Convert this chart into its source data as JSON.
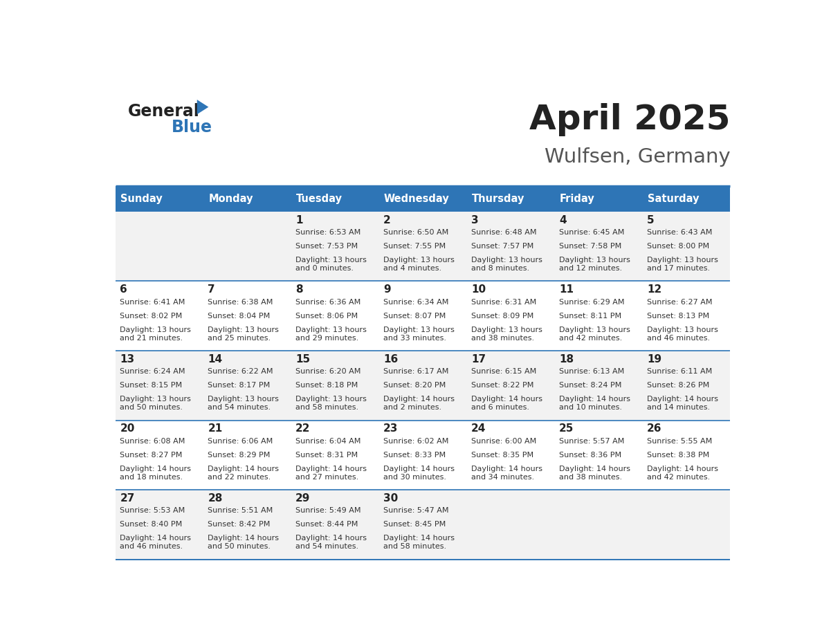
{
  "title": "April 2025",
  "subtitle": "Wulfsen, Germany",
  "header_bg": "#2E75B6",
  "header_text_color": "#FFFFFF",
  "cell_bg_odd": "#F2F2F2",
  "cell_bg_even": "#FFFFFF",
  "border_color": "#2E75B6",
  "day_names": [
    "Sunday",
    "Monday",
    "Tuesday",
    "Wednesday",
    "Thursday",
    "Friday",
    "Saturday"
  ],
  "weeks": [
    [
      {
        "day": "",
        "sunrise": "",
        "sunset": "",
        "daylight": ""
      },
      {
        "day": "",
        "sunrise": "",
        "sunset": "",
        "daylight": ""
      },
      {
        "day": "1",
        "sunrise": "Sunrise: 6:53 AM",
        "sunset": "Sunset: 7:53 PM",
        "daylight": "Daylight: 13 hours\nand 0 minutes."
      },
      {
        "day": "2",
        "sunrise": "Sunrise: 6:50 AM",
        "sunset": "Sunset: 7:55 PM",
        "daylight": "Daylight: 13 hours\nand 4 minutes."
      },
      {
        "day": "3",
        "sunrise": "Sunrise: 6:48 AM",
        "sunset": "Sunset: 7:57 PM",
        "daylight": "Daylight: 13 hours\nand 8 minutes."
      },
      {
        "day": "4",
        "sunrise": "Sunrise: 6:45 AM",
        "sunset": "Sunset: 7:58 PM",
        "daylight": "Daylight: 13 hours\nand 12 minutes."
      },
      {
        "day": "5",
        "sunrise": "Sunrise: 6:43 AM",
        "sunset": "Sunset: 8:00 PM",
        "daylight": "Daylight: 13 hours\nand 17 minutes."
      }
    ],
    [
      {
        "day": "6",
        "sunrise": "Sunrise: 6:41 AM",
        "sunset": "Sunset: 8:02 PM",
        "daylight": "Daylight: 13 hours\nand 21 minutes."
      },
      {
        "day": "7",
        "sunrise": "Sunrise: 6:38 AM",
        "sunset": "Sunset: 8:04 PM",
        "daylight": "Daylight: 13 hours\nand 25 minutes."
      },
      {
        "day": "8",
        "sunrise": "Sunrise: 6:36 AM",
        "sunset": "Sunset: 8:06 PM",
        "daylight": "Daylight: 13 hours\nand 29 minutes."
      },
      {
        "day": "9",
        "sunrise": "Sunrise: 6:34 AM",
        "sunset": "Sunset: 8:07 PM",
        "daylight": "Daylight: 13 hours\nand 33 minutes."
      },
      {
        "day": "10",
        "sunrise": "Sunrise: 6:31 AM",
        "sunset": "Sunset: 8:09 PM",
        "daylight": "Daylight: 13 hours\nand 38 minutes."
      },
      {
        "day": "11",
        "sunrise": "Sunrise: 6:29 AM",
        "sunset": "Sunset: 8:11 PM",
        "daylight": "Daylight: 13 hours\nand 42 minutes."
      },
      {
        "day": "12",
        "sunrise": "Sunrise: 6:27 AM",
        "sunset": "Sunset: 8:13 PM",
        "daylight": "Daylight: 13 hours\nand 46 minutes."
      }
    ],
    [
      {
        "day": "13",
        "sunrise": "Sunrise: 6:24 AM",
        "sunset": "Sunset: 8:15 PM",
        "daylight": "Daylight: 13 hours\nand 50 minutes."
      },
      {
        "day": "14",
        "sunrise": "Sunrise: 6:22 AM",
        "sunset": "Sunset: 8:17 PM",
        "daylight": "Daylight: 13 hours\nand 54 minutes."
      },
      {
        "day": "15",
        "sunrise": "Sunrise: 6:20 AM",
        "sunset": "Sunset: 8:18 PM",
        "daylight": "Daylight: 13 hours\nand 58 minutes."
      },
      {
        "day": "16",
        "sunrise": "Sunrise: 6:17 AM",
        "sunset": "Sunset: 8:20 PM",
        "daylight": "Daylight: 14 hours\nand 2 minutes."
      },
      {
        "day": "17",
        "sunrise": "Sunrise: 6:15 AM",
        "sunset": "Sunset: 8:22 PM",
        "daylight": "Daylight: 14 hours\nand 6 minutes."
      },
      {
        "day": "18",
        "sunrise": "Sunrise: 6:13 AM",
        "sunset": "Sunset: 8:24 PM",
        "daylight": "Daylight: 14 hours\nand 10 minutes."
      },
      {
        "day": "19",
        "sunrise": "Sunrise: 6:11 AM",
        "sunset": "Sunset: 8:26 PM",
        "daylight": "Daylight: 14 hours\nand 14 minutes."
      }
    ],
    [
      {
        "day": "20",
        "sunrise": "Sunrise: 6:08 AM",
        "sunset": "Sunset: 8:27 PM",
        "daylight": "Daylight: 14 hours\nand 18 minutes."
      },
      {
        "day": "21",
        "sunrise": "Sunrise: 6:06 AM",
        "sunset": "Sunset: 8:29 PM",
        "daylight": "Daylight: 14 hours\nand 22 minutes."
      },
      {
        "day": "22",
        "sunrise": "Sunrise: 6:04 AM",
        "sunset": "Sunset: 8:31 PM",
        "daylight": "Daylight: 14 hours\nand 27 minutes."
      },
      {
        "day": "23",
        "sunrise": "Sunrise: 6:02 AM",
        "sunset": "Sunset: 8:33 PM",
        "daylight": "Daylight: 14 hours\nand 30 minutes."
      },
      {
        "day": "24",
        "sunrise": "Sunrise: 6:00 AM",
        "sunset": "Sunset: 8:35 PM",
        "daylight": "Daylight: 14 hours\nand 34 minutes."
      },
      {
        "day": "25",
        "sunrise": "Sunrise: 5:57 AM",
        "sunset": "Sunset: 8:36 PM",
        "daylight": "Daylight: 14 hours\nand 38 minutes."
      },
      {
        "day": "26",
        "sunrise": "Sunrise: 5:55 AM",
        "sunset": "Sunset: 8:38 PM",
        "daylight": "Daylight: 14 hours\nand 42 minutes."
      }
    ],
    [
      {
        "day": "27",
        "sunrise": "Sunrise: 5:53 AM",
        "sunset": "Sunset: 8:40 PM",
        "daylight": "Daylight: 14 hours\nand 46 minutes."
      },
      {
        "day": "28",
        "sunrise": "Sunrise: 5:51 AM",
        "sunset": "Sunset: 8:42 PM",
        "daylight": "Daylight: 14 hours\nand 50 minutes."
      },
      {
        "day": "29",
        "sunrise": "Sunrise: 5:49 AM",
        "sunset": "Sunset: 8:44 PM",
        "daylight": "Daylight: 14 hours\nand 54 minutes."
      },
      {
        "day": "30",
        "sunrise": "Sunrise: 5:47 AM",
        "sunset": "Sunset: 8:45 PM",
        "daylight": "Daylight: 14 hours\nand 58 minutes."
      },
      {
        "day": "",
        "sunrise": "",
        "sunset": "",
        "daylight": ""
      },
      {
        "day": "",
        "sunrise": "",
        "sunset": "",
        "daylight": ""
      },
      {
        "day": "",
        "sunrise": "",
        "sunset": "",
        "daylight": ""
      }
    ]
  ],
  "logo_general_color": "#222222",
  "logo_blue_color": "#2E75B6",
  "title_color": "#222222",
  "subtitle_color": "#555555"
}
